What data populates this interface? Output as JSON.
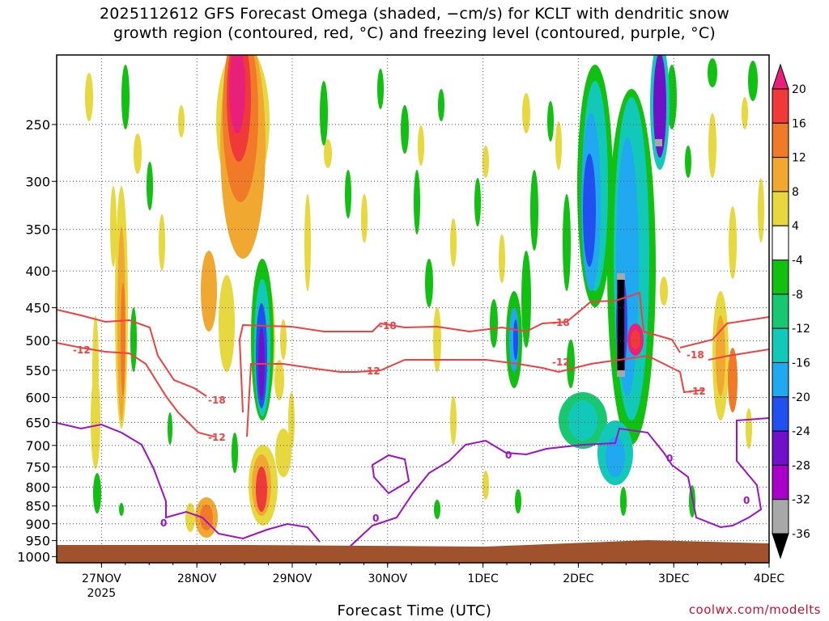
{
  "chart_data": {
    "type": "heatmap",
    "title_line1": "2025112612 GFS Forecast Omega (shaded, −cm/s) for KCLT with dendritic snow",
    "title_line2": "growth region (contoured, red, °C) and freezing level (contoured, purple, °C)",
    "xlabel": "Forecast Time (UTC)",
    "ylabel": "",
    "y_axis": {
      "scale": "log-pressure",
      "ticks": [
        250,
        300,
        350,
        400,
        450,
        500,
        550,
        600,
        650,
        700,
        750,
        800,
        850,
        900,
        950,
        1000
      ],
      "range": [
        200,
        1020
      ]
    },
    "x_axis": {
      "ticks": [
        "27NOV",
        "28NOV",
        "29NOV",
        "30NOV",
        "1DEC",
        "2DEC",
        "3DEC",
        "4DEC"
      ],
      "year_label": "2025",
      "range_days": [
        0,
        7.75
      ]
    },
    "grid": true,
    "colorbar": {
      "labels": [
        "20",
        "16",
        "12",
        "8",
        "4",
        "-4",
        "-8",
        "-12",
        "-16",
        "-20",
        "-24",
        "-28",
        "-32",
        "-36"
      ],
      "colors": [
        "#e8207a",
        "#f03a3a",
        "#f07a28",
        "#f0a830",
        "#e8d840",
        "#ffffff",
        "#12c012",
        "#18c870",
        "#12c8b8",
        "#20a8f0",
        "#2050f0",
        "#7010c8",
        "#a800c8",
        "#a8a8a8",
        "#000000"
      ]
    },
    "contours": {
      "dgz_red": {
        "color": "#f04040",
        "labels": [
          "-12",
          "-18",
          "-18",
          "-12",
          "-18",
          "-12",
          "-18",
          "-12"
        ]
      },
      "freezing_purple": {
        "color": "#a010c8",
        "labels": [
          "0",
          "0",
          "0",
          "0",
          "0"
        ]
      }
    },
    "omega_features": [
      {
        "label": "28NOV-29NOV",
        "value": 20
      },
      {
        "label": "28NOV upper",
        "value": 16
      },
      {
        "label": "27NOV",
        "value": 12
      },
      {
        "label": "29NOV",
        "value": -28
      },
      {
        "label": "2DEC",
        "value": -36
      },
      {
        "label": "3DEC",
        "value": -28
      }
    ],
    "ground_color": "#a0522d",
    "credit": "coolwx.com/modelts"
  }
}
